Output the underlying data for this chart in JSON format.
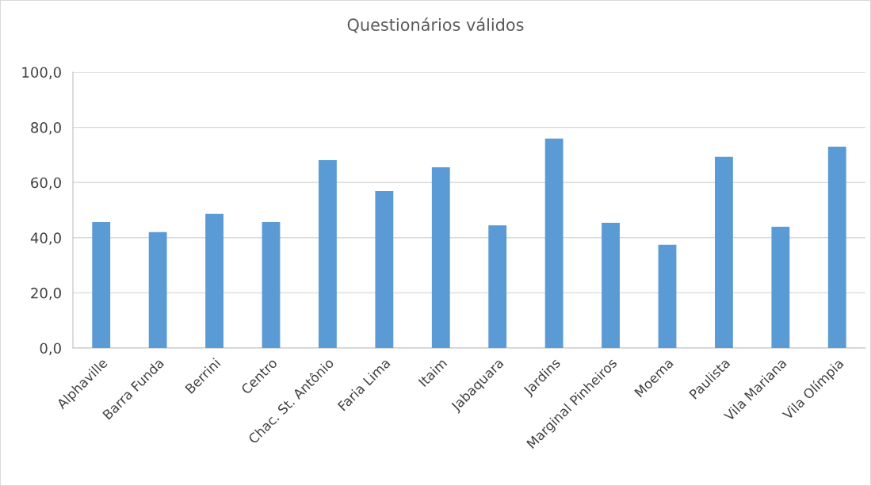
{
  "chart_data": {
    "type": "bar",
    "title": "Questionários válidos",
    "categories": [
      "Alphaville",
      "Barra Funda",
      "Berrini",
      "Centro",
      "Chac. St. Antônio",
      "Faria Lima",
      "Itaim",
      "Jabaquara",
      "Jardins",
      "Marginal Pinheiros",
      "Moema",
      "Paulista",
      "Vila Mariana",
      "Vila Olímpia"
    ],
    "values": [
      45.7,
      42.0,
      48.6,
      45.7,
      68.1,
      56.9,
      65.5,
      44.5,
      75.9,
      45.4,
      37.4,
      69.3,
      44.0,
      73.0
    ],
    "color": "#5b9bd5",
    "ylim": [
      0,
      100
    ],
    "yticks": [
      {
        "value": 0,
        "label": "0,0"
      },
      {
        "value": 20,
        "label": "20,0"
      },
      {
        "value": 40,
        "label": "40,0"
      },
      {
        "value": 60,
        "label": "60,0"
      },
      {
        "value": 80,
        "label": "80,0"
      },
      {
        "value": 100,
        "label": "100,0"
      }
    ],
    "grid": "y"
  }
}
